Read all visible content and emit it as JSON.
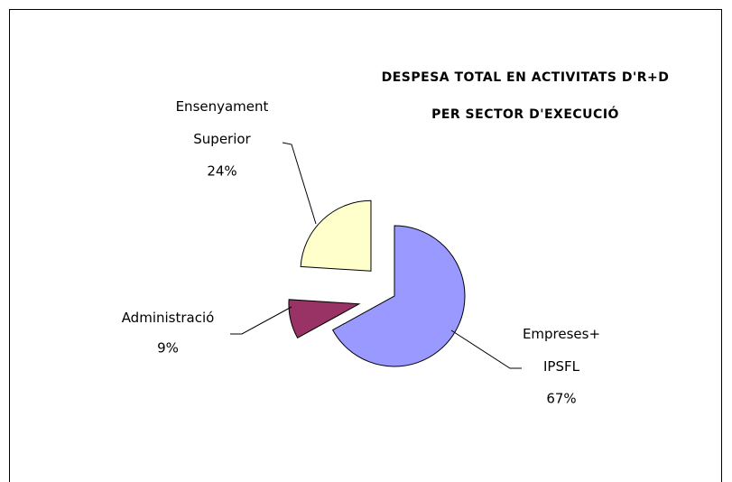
{
  "chart_data": {
    "type": "pie",
    "title": [
      "DESPESA TOTAL EN ACTIVITATS D'R+D",
      "PER SECTOR D'EXECUCIÓ"
    ],
    "categories": [
      "Empreses+ IPSFL",
      "Administració",
      "Ensenyament Superior"
    ],
    "values": [
      67,
      9,
      24
    ],
    "value_labels": [
      "67%",
      "9%",
      "24%"
    ],
    "colors": [
      "#9999ff",
      "#993366",
      "#ffffcc"
    ]
  }
}
